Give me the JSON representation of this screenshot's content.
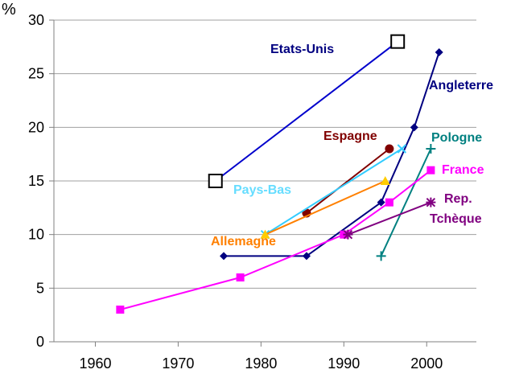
{
  "chart_data": {
    "type": "line",
    "ylabel": "%",
    "xlim": [
      1955,
      2006
    ],
    "ylim": [
      0,
      30
    ],
    "x_ticks": [
      1960,
      1970,
      1980,
      1990,
      2000
    ],
    "y_ticks": [
      0,
      5,
      10,
      15,
      20,
      25,
      30
    ],
    "grid": "horizontal",
    "legend": "inline labels",
    "series": [
      {
        "name": "Etats-Unis",
        "color": "#0000cc",
        "marker": "open-square",
        "points": [
          [
            1974.5,
            15
          ],
          [
            1996.5,
            28
          ]
        ]
      },
      {
        "name": "Angleterre",
        "color": "#000080",
        "marker": "diamond",
        "points": [
          [
            1975.5,
            8
          ],
          [
            1985.5,
            8
          ],
          [
            1994.5,
            13
          ],
          [
            1998.5,
            20
          ],
          [
            2001.5,
            27
          ]
        ]
      },
      {
        "name": "Espagne",
        "color": "#800000",
        "marker": "circle",
        "points": [
          [
            1985.5,
            12
          ],
          [
            1995.5,
            18
          ]
        ]
      },
      {
        "name": "Pologne",
        "color": "#008080",
        "marker": "plus",
        "points": [
          [
            1994.5,
            8
          ],
          [
            2000.5,
            18
          ]
        ]
      },
      {
        "name": "France",
        "color": "#ff00ff",
        "marker": "filled-square",
        "points": [
          [
            1963,
            3
          ],
          [
            1977.5,
            6
          ],
          [
            1990,
            10
          ],
          [
            1995.5,
            13
          ],
          [
            2000.5,
            16
          ]
        ]
      },
      {
        "name": "Pays-Bas",
        "color": "#33ccff",
        "marker": "x",
        "points": [
          [
            1980.5,
            10
          ],
          [
            1997,
            18
          ]
        ]
      },
      {
        "name": "Allemagne",
        "color": "#ff8000",
        "marker": "triangle",
        "points": [
          [
            1980.5,
            10
          ],
          [
            1995,
            15
          ]
        ]
      },
      {
        "name": "Rep.\nTchèque",
        "color": "#800080",
        "marker": "star",
        "points": [
          [
            1990.5,
            10
          ],
          [
            2000.5,
            13
          ]
        ]
      }
    ],
    "labels": {
      "unit": "%",
      "etats_unis": "Etats-Unis",
      "angleterre": "Angleterre",
      "espagne": "Espagne",
      "pologne": "Pologne",
      "france": "France",
      "pays_bas": "Pays-Bas",
      "allemagne": "Allemagne",
      "rep": "Rep.",
      "tcheque": "Tchèque"
    }
  }
}
